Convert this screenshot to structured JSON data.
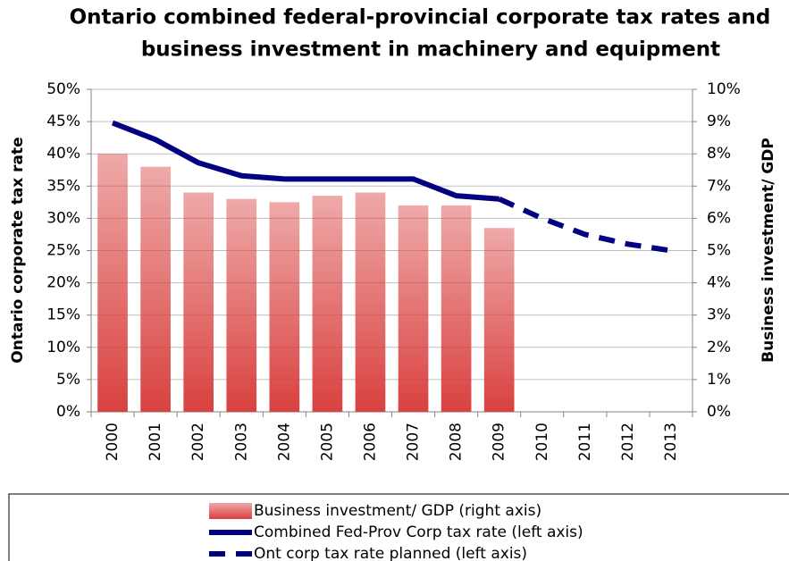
{
  "chart_data": {
    "type": "bar-line",
    "title": [
      "Ontario combined federal-provincial corporate tax rates and",
      "business investment in machinery and equipment"
    ],
    "ylabel": "Ontario corporate tax rate",
    "y2label": "Business investment/ GDP",
    "categories": [
      "2000",
      "2001",
      "2002",
      "2003",
      "2004",
      "2005",
      "2006",
      "2007",
      "2008",
      "2009",
      "2010",
      "2011",
      "2012",
      "2013"
    ],
    "series": [
      {
        "name": "Business investment/ GDP (right axis)",
        "color": "#d9413f",
        "kind": "bar",
        "axis": "y2",
        "values": [
          8.0,
          7.6,
          6.8,
          6.6,
          6.5,
          6.7,
          6.8,
          6.4,
          6.4,
          5.7,
          null,
          null,
          null,
          null
        ]
      },
      {
        "name": "Combined Fed-Prov Corp tax rate (left axis)",
        "color": "#000080",
        "kind": "line",
        "dashed": false,
        "values": [
          44.8,
          42.2,
          38.6,
          36.6,
          36.1,
          36.1,
          36.1,
          36.1,
          33.5,
          33.0,
          null,
          null,
          null,
          null
        ]
      },
      {
        "name": "Ont corp tax rate planned (left axis)",
        "color": "#000080",
        "kind": "line",
        "dashed": true,
        "values": [
          null,
          null,
          null,
          null,
          null,
          null,
          null,
          null,
          null,
          33.0,
          30.0,
          27.5,
          26.0,
          25.0
        ]
      }
    ],
    "ylim": [
      0,
      50
    ],
    "yticks": [
      {
        "value": 0,
        "label": "0%"
      },
      {
        "value": 5,
        "label": "5%"
      },
      {
        "value": 10,
        "label": "10%"
      },
      {
        "value": 15,
        "label": "15%"
      },
      {
        "value": 20,
        "label": "20%"
      },
      {
        "value": 25,
        "label": "25%"
      },
      {
        "value": 30,
        "label": "30%"
      },
      {
        "value": 35,
        "label": "35%"
      },
      {
        "value": 40,
        "label": "40%"
      },
      {
        "value": 45,
        "label": "45%"
      },
      {
        "value": 50,
        "label": "50%"
      }
    ],
    "y2lim": [
      0,
      10
    ],
    "y2ticks": [
      {
        "value": 0,
        "label": "0%"
      },
      {
        "value": 1,
        "label": "1%"
      },
      {
        "value": 2,
        "label": "2%"
      },
      {
        "value": 3,
        "label": "3%"
      },
      {
        "value": 4,
        "label": "4%"
      },
      {
        "value": 5,
        "label": "5%"
      },
      {
        "value": 6,
        "label": "6%"
      },
      {
        "value": 7,
        "label": "7%"
      },
      {
        "value": 8,
        "label": "8%"
      },
      {
        "value": 9,
        "label": "9%"
      },
      {
        "value": 10,
        "label": "10%"
      }
    ],
    "grid": true,
    "legend": "bottom"
  }
}
